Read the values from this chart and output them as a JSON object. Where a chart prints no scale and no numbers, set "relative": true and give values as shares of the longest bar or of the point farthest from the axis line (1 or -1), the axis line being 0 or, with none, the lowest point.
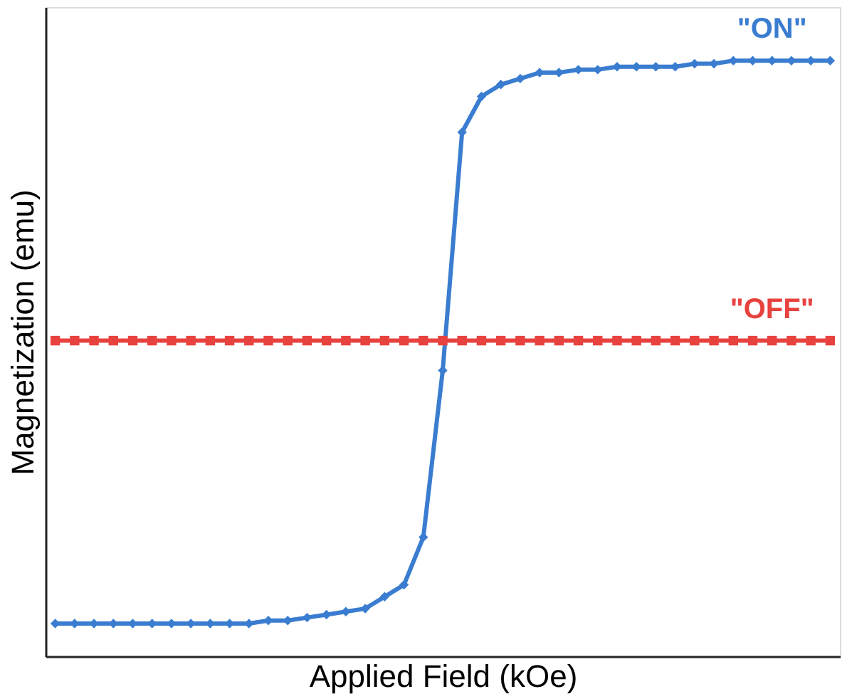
{
  "chart_data": {
    "type": "line",
    "relative": true,
    "xlabel": "Applied Field (kOe)",
    "ylabel": "Magnetization (emu)",
    "legend": false,
    "grid": false,
    "categories": [
      null,
      null,
      null,
      null,
      null,
      null,
      null,
      null,
      null,
      null,
      null,
      null,
      null,
      null,
      null,
      null,
      null,
      null,
      null,
      null,
      null,
      null,
      null,
      null,
      null,
      null,
      null,
      null,
      null,
      null,
      null,
      null,
      null,
      null,
      null,
      null,
      null,
      null,
      null,
      null,
      null
    ],
    "series": [
      {
        "name": "\"ON\"",
        "color": "#3a7dd0",
        "marker": "diamond",
        "values": [
          0.055,
          0.055,
          0.055,
          0.055,
          0.055,
          0.055,
          0.055,
          0.055,
          0.055,
          0.055,
          0.055,
          0.06,
          0.06,
          0.065,
          0.07,
          0.075,
          0.08,
          0.1,
          0.12,
          0.2,
          0.48,
          0.88,
          0.94,
          0.96,
          0.97,
          0.98,
          0.98,
          0.985,
          0.985,
          0.99,
          0.99,
          0.99,
          0.99,
          0.995,
          0.995,
          1,
          1,
          1,
          1,
          1,
          1
        ]
      },
      {
        "name": "\"OFF\"",
        "color": "#e8423f",
        "marker": "square",
        "values": [
          0.53,
          0.53,
          0.53,
          0.53,
          0.53,
          0.53,
          0.53,
          0.53,
          0.53,
          0.53,
          0.53,
          0.53,
          0.53,
          0.53,
          0.53,
          0.53,
          0.53,
          0.53,
          0.53,
          0.53,
          0.53,
          0.53,
          0.53,
          0.53,
          0.53,
          0.53,
          0.53,
          0.53,
          0.53,
          0.53,
          0.53,
          0.53,
          0.53,
          0.53,
          0.53,
          0.53,
          0.53,
          0.53,
          0.53,
          0.53,
          0.53
        ]
      }
    ]
  }
}
